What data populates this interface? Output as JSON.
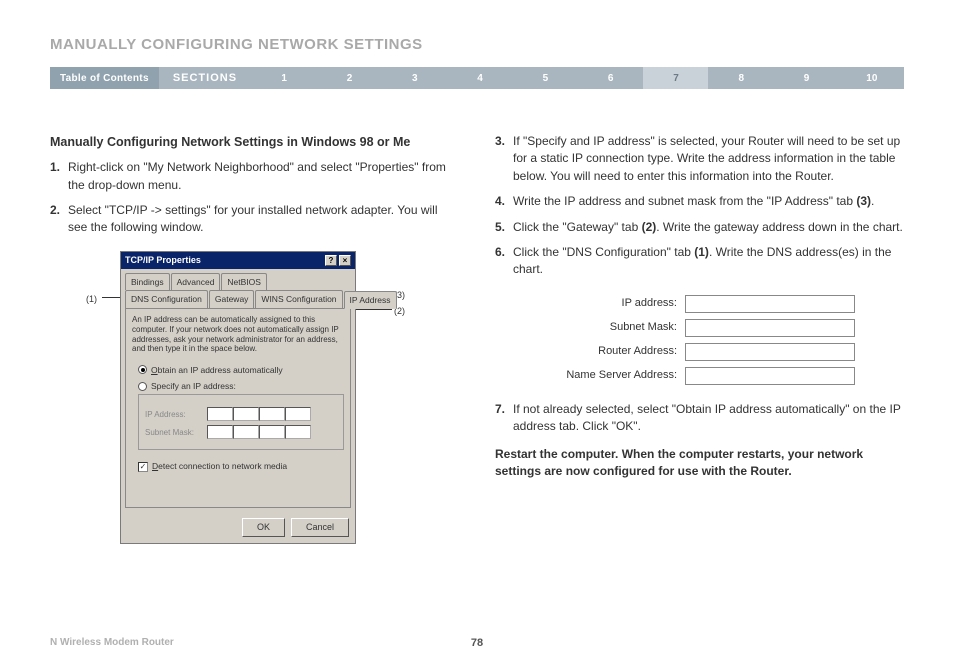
{
  "header": {
    "title": "MANUALLY CONFIGURING NETWORK SETTINGS"
  },
  "nav": {
    "toc": "Table of Contents",
    "sections_label": "SECTIONS",
    "items": [
      "1",
      "2",
      "3",
      "4",
      "5",
      "6",
      "7",
      "8",
      "9",
      "10"
    ],
    "active_index": 6,
    "colors": {
      "bar": "#a9b6bf",
      "toc": "#8fa2ae",
      "active_bg": "#c9d2d8",
      "active_fg": "#6b7a85"
    }
  },
  "left": {
    "subheading": "Manually Configuring Network Settings in Windows 98 or Me",
    "steps": [
      "Right-click on \"My Network Neighborhood\" and select \"Properties\" from the drop-down menu.",
      "Select \"TCP/IP -> settings\" for your installed network adapter. You will see the following window."
    ],
    "step_numbers": [
      "1.",
      "2."
    ],
    "callouts": {
      "c1": "(1)",
      "c2": "(2)",
      "c3": "(3)"
    }
  },
  "dialog": {
    "title": "TCP/IP Properties",
    "help_btn": "?",
    "close_btn": "×",
    "tabs_row1": [
      "Bindings",
      "Advanced",
      "NetBIOS"
    ],
    "tabs_row2": [
      "DNS Configuration",
      "Gateway",
      "WINS Configuration",
      "IP Address"
    ],
    "info": "An IP address can be automatically assigned to this computer. If your network does not automatically assign IP addresses, ask your network administrator for an address, and then type it in the space below.",
    "radio_auto": "Obtain an IP address automatically",
    "radio_specify": "Specify an IP address:",
    "ip_label": "IP Address:",
    "mask_label": "Subnet Mask:",
    "detect": "Detect connection to network media",
    "check_mark": "✓",
    "ok": "OK",
    "cancel": "Cancel"
  },
  "right": {
    "steps": [
      {
        "n": "3.",
        "t": "If \"Specify and IP address\" is selected, your Router will need to be set up for a static IP connection type. Write the address information in the table below. You will need to enter this information into the Router."
      },
      {
        "n": "4.",
        "t": "Write the IP address and subnet mask from the \"IP Address\" tab ",
        "bold_tail": "(3)",
        "tail": "."
      },
      {
        "n": "5.",
        "t": "Click the \"Gateway\" tab ",
        "bold_tail": "(2)",
        "tail": ". Write the gateway address down in the chart."
      },
      {
        "n": "6.",
        "t": "Click the \"DNS Configuration\" tab ",
        "bold_tail": "(1)",
        "tail": ". Write the DNS address(es) in the chart."
      },
      {
        "n": "7.",
        "t": "If not already selected, select \"Obtain IP address automatically\" on the IP address tab. Click \"OK\"."
      }
    ],
    "table_labels": [
      "IP address:",
      "Subnet Mask:",
      "Router Address:",
      "Name Server Address:"
    ],
    "restart": "Restart the computer. When the computer restarts, your network settings are now configured for use with the Router."
  },
  "footer": {
    "product": "N Wireless Modem Router",
    "page": "78"
  }
}
